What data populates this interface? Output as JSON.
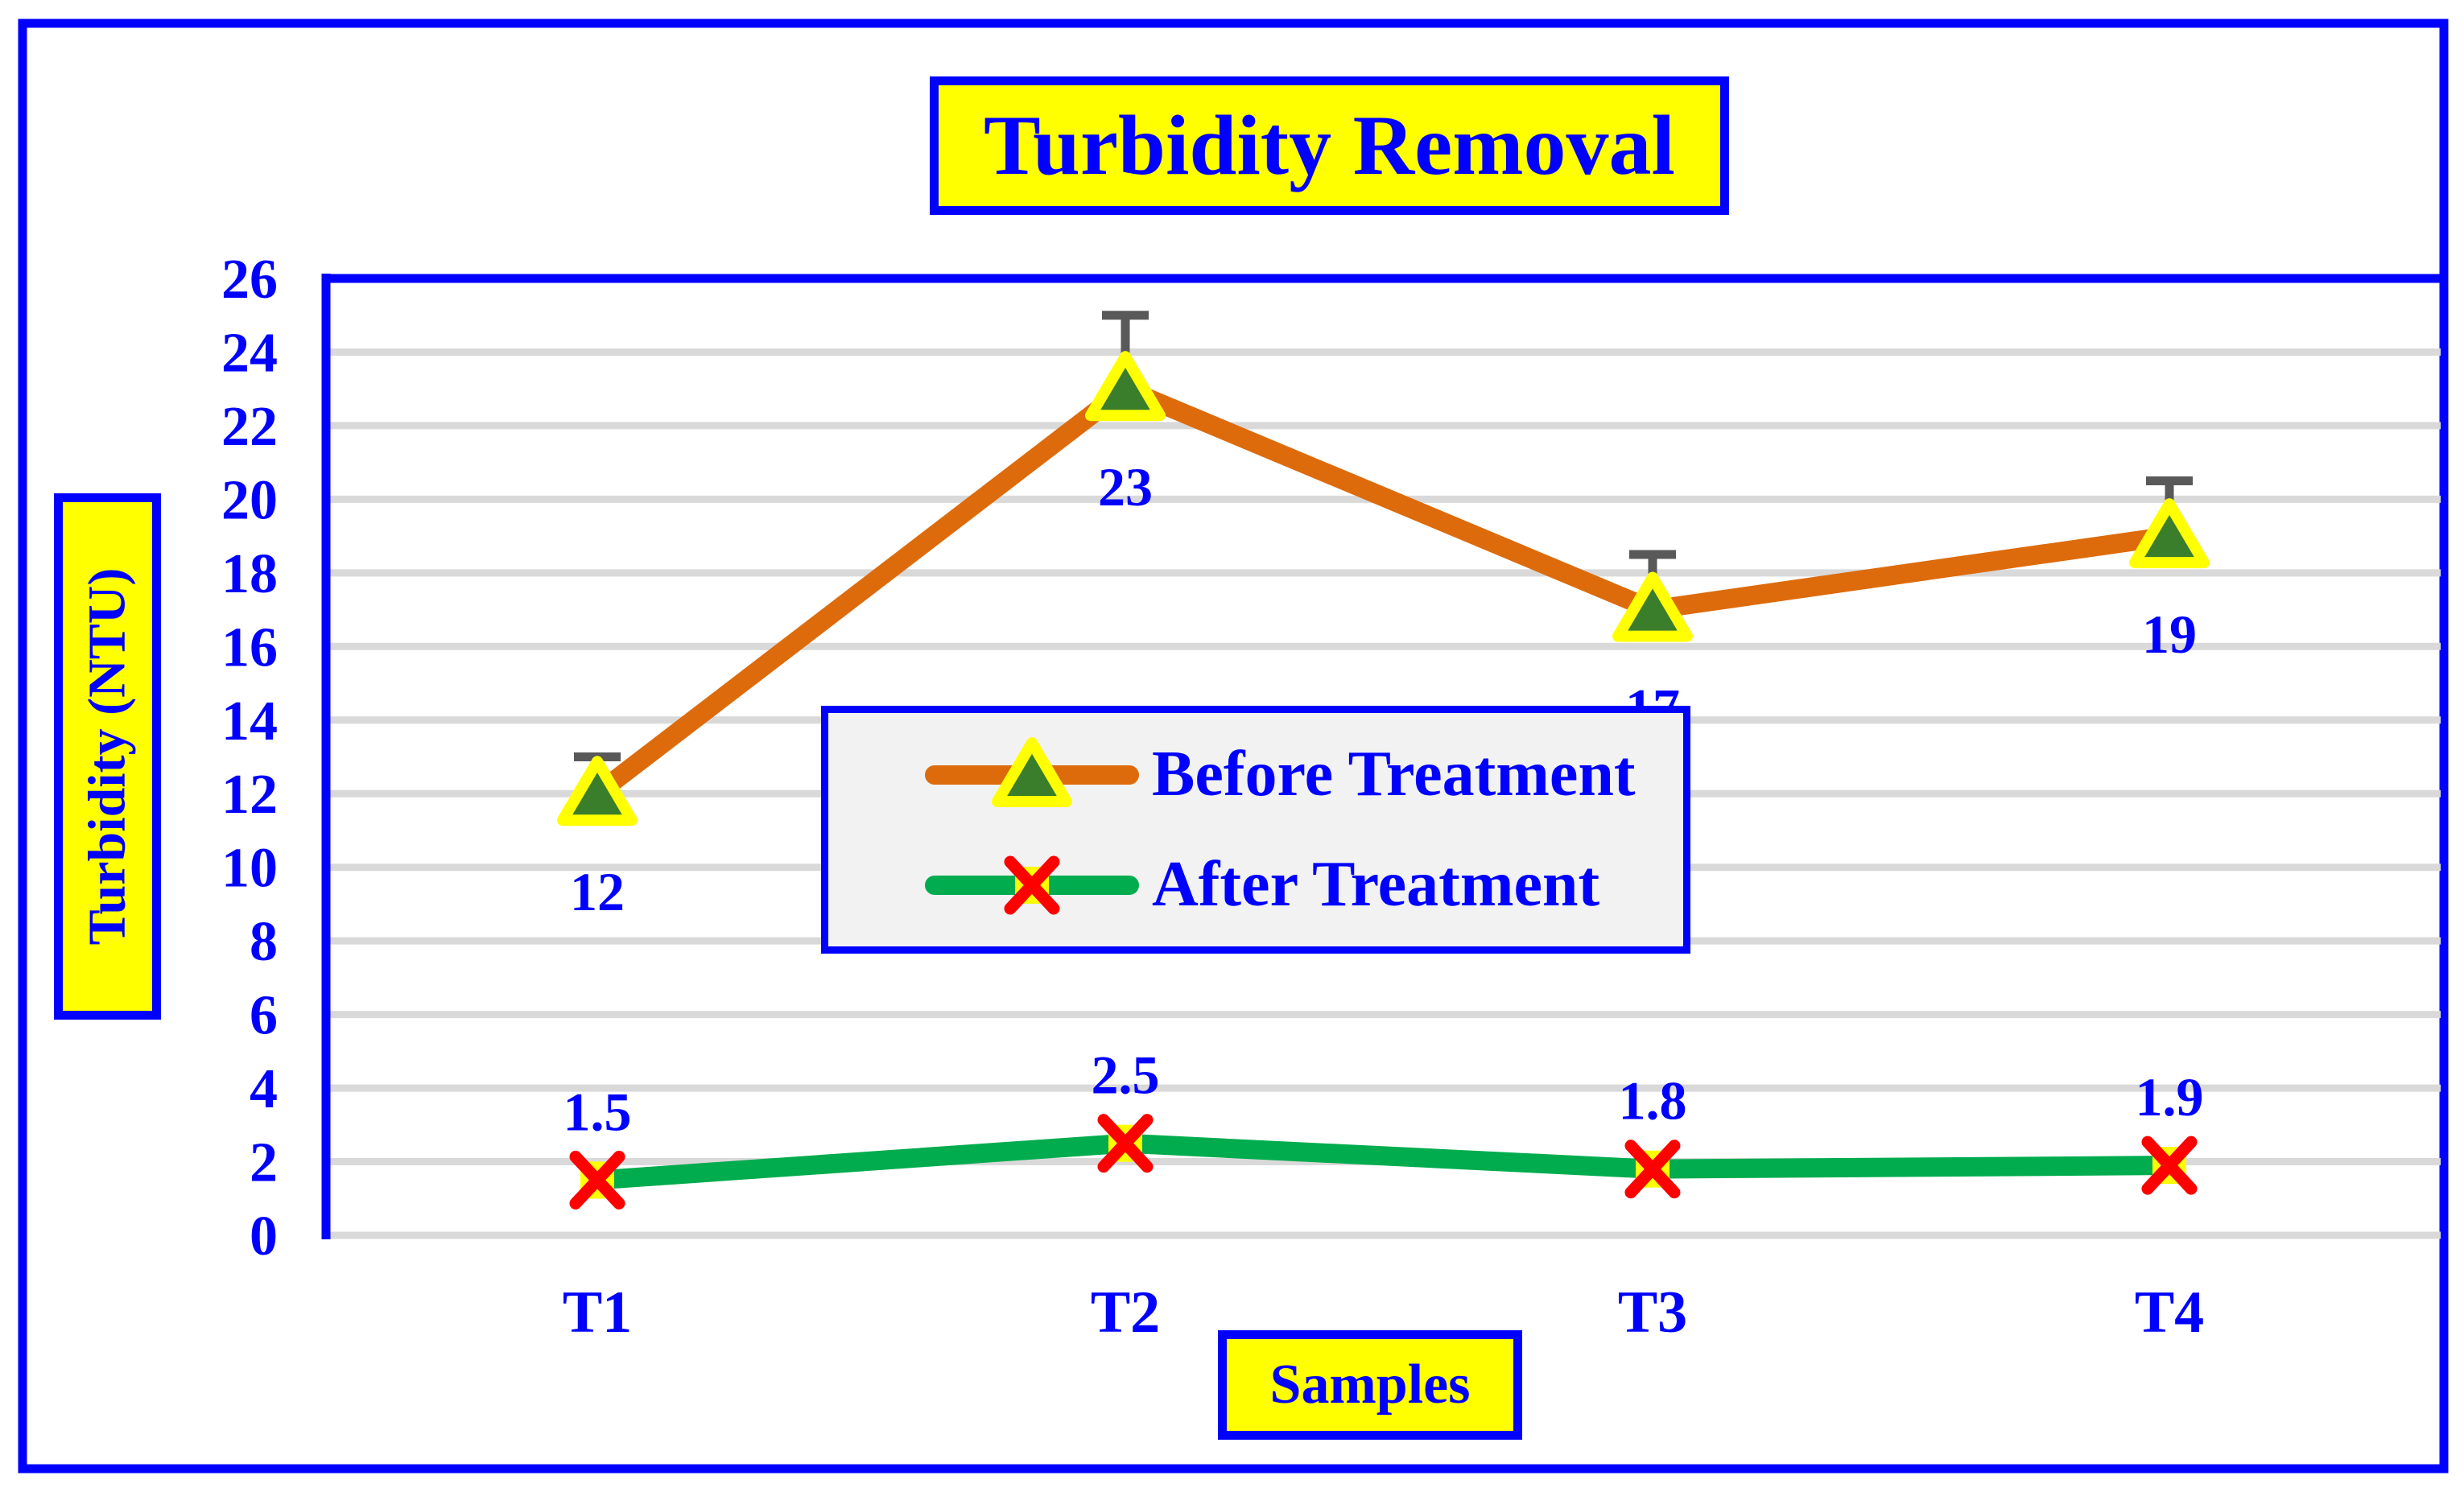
{
  "title": {
    "text": "Turbidity Removal"
  },
  "axis": {
    "y_title": "Turbidity (NTU)",
    "x_title": "Samples"
  },
  "chart_data": {
    "type": "line",
    "title": "Turbidity Removal",
    "xlabel": "Samples",
    "ylabel": "Turbidity (NTU)",
    "categories": [
      "T1",
      "T2",
      "T3",
      "T4"
    ],
    "series": [
      {
        "name": "Before Treatment",
        "values": [
          12,
          23,
          17,
          19
        ],
        "labels": [
          "12",
          "23",
          "17",
          "19"
        ],
        "errors_up": [
          1,
          2,
          1.5,
          1.5
        ],
        "color": "#DD6B0C",
        "marker": "triangle-yellow-green",
        "label_position": "below"
      },
      {
        "name": "After Treatment",
        "values": [
          1.5,
          2.5,
          1.8,
          1.9
        ],
        "labels": [
          "1.5",
          "2.5",
          "1.8",
          "1.9"
        ],
        "errors_up": null,
        "color": "#00AC4E",
        "marker": "x-red-on-yellow",
        "label_position": "above"
      }
    ],
    "ylim": [
      0,
      26
    ],
    "yticks": [
      0,
      2,
      4,
      6,
      8,
      10,
      12,
      14,
      16,
      18,
      20,
      22,
      24,
      26
    ],
    "grid": true,
    "data_labels": true,
    "legend_position": "center-inside"
  },
  "colors": {
    "text_blue": "#0000FF",
    "border_blue": "#0000FF",
    "box_yellow": "#FFFF00",
    "before_line": "#DD6B0C",
    "after_line": "#00AC4E",
    "marker_triangle_fill": "#3A7D2B",
    "marker_triangle_stroke": "#FFFF00",
    "marker_x_stroke": "#FF0000",
    "marker_x_fill": "#FFFF00",
    "gridline": "#D9D9D9",
    "error_bar": "#595959",
    "legend_bg": "#F2F2F2",
    "background": "#FFFFFF"
  }
}
